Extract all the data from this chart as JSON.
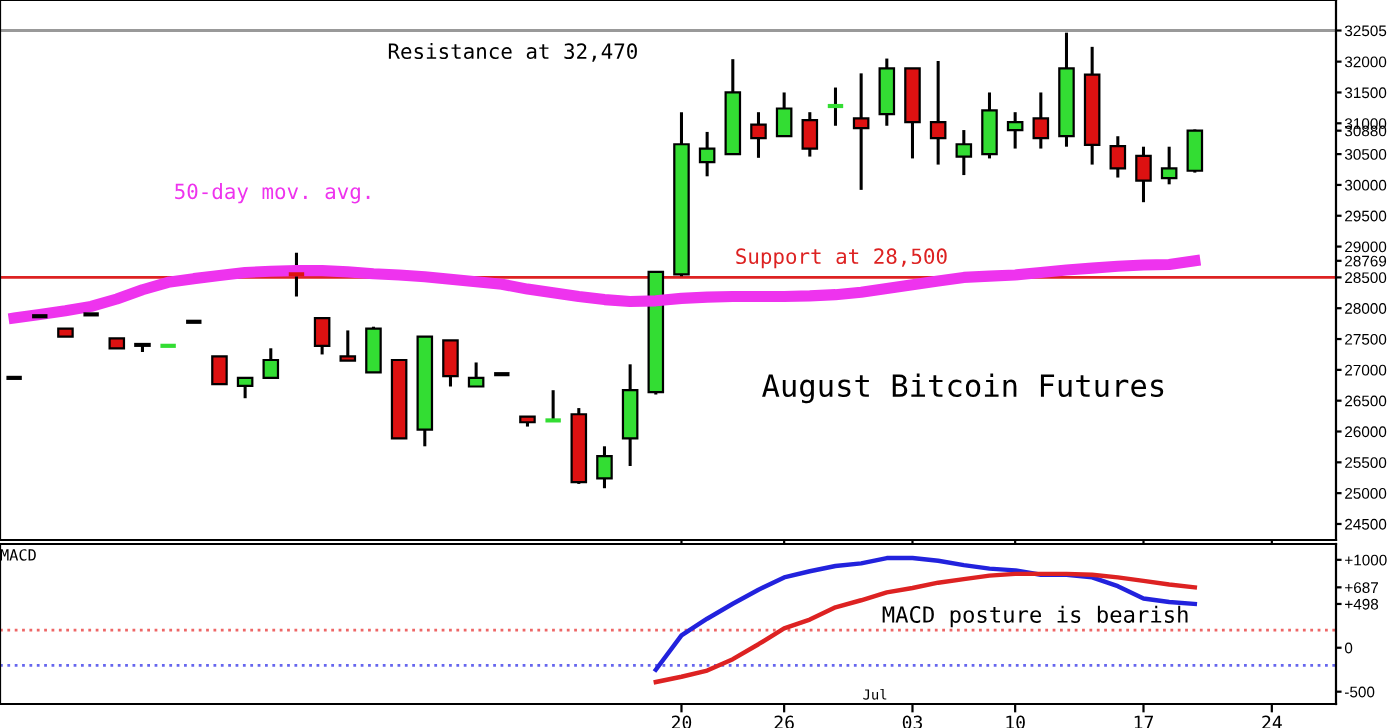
{
  "chart_data": [
    {
      "type": "candlestick",
      "categories": [
        null,
        null,
        null,
        null,
        null,
        null,
        null,
        null,
        null,
        null,
        null,
        null,
        null,
        null,
        null,
        null,
        null,
        null,
        null,
        null,
        null,
        null,
        null,
        null,
        null,
        null,
        "20",
        null,
        null,
        null,
        "26",
        null,
        null,
        null,
        null,
        "03",
        null,
        null,
        null,
        "10",
        null,
        null,
        null,
        null,
        "17",
        null,
        null,
        null,
        null,
        "24",
        null,
        null
      ],
      "ohlc": [
        [
          26870,
          26870,
          26870,
          26870
        ],
        [
          27870,
          27870,
          27870,
          27870
        ],
        [
          27670,
          27670,
          27540,
          27540
        ],
        [
          27900,
          27900,
          27900,
          27900
        ],
        [
          27510,
          27510,
          27350,
          27350
        ],
        [
          27420,
          27420,
          27290,
          27390
        ],
        [
          27390,
          27390,
          27390,
          27390
        ],
        [
          27780,
          27780,
          27780,
          27780
        ],
        [
          27220,
          27220,
          26770,
          26770
        ],
        [
          26740,
          26870,
          26540,
          26870
        ],
        [
          26870,
          27350,
          26870,
          27160
        ],
        [
          28550,
          28900,
          28190,
          28550
        ],
        [
          27840,
          27840,
          27250,
          27390
        ],
        [
          27220,
          27640,
          27150,
          27150
        ],
        [
          26960,
          27700,
          26960,
          27670
        ],
        [
          27160,
          27160,
          25890,
          25890
        ],
        [
          26030,
          27540,
          25760,
          27540
        ],
        [
          27480,
          27480,
          26730,
          26900
        ],
        [
          26730,
          27120,
          26730,
          26870
        ],
        [
          26930,
          26930,
          26930,
          26930
        ],
        [
          26240,
          26240,
          26080,
          26150
        ],
        [
          26180,
          26670,
          26180,
          26180
        ],
        [
          26280,
          26380,
          25150,
          25180
        ],
        [
          25240,
          25760,
          25080,
          25600
        ],
        [
          25890,
          27090,
          25440,
          26670
        ],
        [
          26640,
          28590,
          26600,
          28590
        ],
        [
          28550,
          31180,
          28520,
          30660
        ],
        [
          30370,
          30860,
          30140,
          30590
        ],
        [
          30500,
          32040,
          30500,
          31500
        ],
        [
          30980,
          31180,
          30440,
          30760
        ],
        [
          30790,
          31500,
          30790,
          31240
        ],
        [
          31050,
          31180,
          30460,
          30590
        ],
        [
          31280,
          31580,
          30960,
          31280
        ],
        [
          31080,
          31810,
          29920,
          30920
        ],
        [
          31150,
          32050,
          30960,
          31890
        ],
        [
          31890,
          31890,
          30430,
          31020
        ],
        [
          31020,
          32010,
          30330,
          30760
        ],
        [
          30460,
          30890,
          30160,
          30660
        ],
        [
          30500,
          31500,
          30430,
          31210
        ],
        [
          30890,
          31180,
          30590,
          31020
        ],
        [
          31080,
          31500,
          30590,
          30760
        ],
        [
          30790,
          32470,
          30620,
          31890
        ],
        [
          31790,
          32240,
          30330,
          30650
        ],
        [
          30630,
          30790,
          30120,
          30270
        ],
        [
          30470,
          30620,
          29720,
          30070
        ],
        [
          30110,
          30620,
          30010,
          30270
        ],
        [
          30230,
          30900,
          30200,
          30880
        ],
        null,
        null,
        null,
        null,
        null
      ],
      "colors": [
        "#000000",
        "#000000",
        "#dd1111",
        "#000000",
        "#dd1111",
        "#dd1111",
        "#33dd33",
        "#000000",
        "#dd1111",
        "#33dd33",
        "#33dd33",
        "#dd1111",
        "#dd1111",
        "#dd1111",
        "#33dd33",
        "#dd1111",
        "#33dd33",
        "#dd1111",
        "#33dd33",
        "#000000",
        "#dd1111",
        "#33dd33",
        "#dd1111",
        "#33dd33",
        "#33dd33",
        "#33dd33",
        "#33dd33",
        "#33dd33",
        "#33dd33",
        "#dd1111",
        "#33dd33",
        "#dd1111",
        "#33dd33",
        "#dd1111",
        "#33dd33",
        "#dd1111",
        "#dd1111",
        "#33dd33",
        "#33dd33",
        "#33dd33",
        "#dd1111",
        "#33dd33",
        "#dd1111",
        "#dd1111",
        "#dd1111",
        "#33dd33",
        "#33dd33",
        null,
        null,
        null,
        null,
        null
      ],
      "series": [
        {
          "type": "line",
          "color": "#ee33ee",
          "values": [
            27840,
            27900,
            27960,
            28030,
            28150,
            28300,
            28420,
            28480,
            28530,
            28580,
            28600,
            28610,
            28610,
            28590,
            28560,
            28540,
            28510,
            28470,
            28430,
            28390,
            28310,
            28250,
            28190,
            28140,
            28110,
            28120,
            28160,
            28180,
            28190,
            28190,
            28190,
            28200,
            28220,
            28260,
            28320,
            28380,
            28440,
            28500,
            28520,
            28540,
            28580,
            28620,
            28650,
            28680,
            28700,
            28710,
            28769,
            null,
            null,
            null,
            null,
            null
          ]
        }
      ],
      "ylim": [
        24240,
        33000
      ],
      "yticks": [
        24500,
        25000,
        25500,
        26000,
        26500,
        27000,
        27500,
        28000,
        28500,
        28769,
        29000,
        29500,
        30000,
        30500,
        30880,
        31000,
        31500,
        32000,
        32505
      ],
      "ref_lines": [
        {
          "axis": "y",
          "value": 32505,
          "label": "Resistance at 32,470",
          "color": "#999999"
        },
        {
          "axis": "y",
          "value": 28500,
          "label": "Support at 28,500",
          "color": "#dd2222"
        }
      ],
      "annotations": [
        "50-day mov. avg.",
        "August Bitcoin Futures"
      ],
      "tick_labels": "y",
      "grid": false
    },
    {
      "type": "line",
      "title": "MACD",
      "categories": [
        null,
        null,
        null,
        null,
        null,
        null,
        null,
        null,
        null,
        null,
        null,
        null,
        null,
        null,
        null,
        null,
        null,
        null,
        null,
        null,
        null,
        null,
        null,
        null,
        null,
        null,
        "20",
        null,
        null,
        null,
        "26",
        null,
        null,
        null,
        null,
        "03",
        null,
        null,
        null,
        "10",
        null,
        null,
        null,
        null,
        "17",
        null,
        null,
        null,
        null,
        "24",
        null,
        null
      ],
      "series": [
        {
          "color": "#2222dd",
          "values": [
            null,
            null,
            null,
            null,
            null,
            null,
            null,
            null,
            null,
            null,
            null,
            null,
            null,
            null,
            null,
            null,
            null,
            null,
            null,
            null,
            null,
            null,
            null,
            null,
            null,
            -250,
            140,
            330,
            500,
            660,
            800,
            870,
            930,
            960,
            1020,
            1020,
            990,
            940,
            900,
            880,
            830,
            830,
            800,
            700,
            560,
            520,
            498,
            null,
            null,
            null,
            null,
            null
          ]
        },
        {
          "color": "#dd2222",
          "values": [
            null,
            null,
            null,
            null,
            null,
            null,
            null,
            null,
            null,
            null,
            null,
            null,
            null,
            null,
            null,
            null,
            null,
            null,
            null,
            null,
            null,
            null,
            null,
            null,
            null,
            -390,
            -330,
            -260,
            -130,
            40,
            220,
            320,
            460,
            540,
            630,
            680,
            740,
            780,
            820,
            840,
            840,
            840,
            830,
            800,
            760,
            720,
            687,
            null,
            null,
            null,
            null,
            null
          ]
        }
      ],
      "ylim": [
        -640,
        1180
      ],
      "yticks": [
        -500,
        0,
        {
          "value": 498,
          "label": "+498"
        },
        {
          "value": 687,
          "label": "+687"
        },
        {
          "value": 1000,
          "label": "+1000"
        }
      ],
      "ref_lines": [
        {
          "axis": "y",
          "value": 200,
          "color": "#ee6666",
          "line_style": "dotted"
        },
        {
          "axis": "y",
          "value": -200,
          "color": "#6666ee",
          "line_style": "dotted"
        }
      ],
      "annotations": [
        "MACD posture is bearish",
        "Jul"
      ],
      "grid": false
    }
  ]
}
